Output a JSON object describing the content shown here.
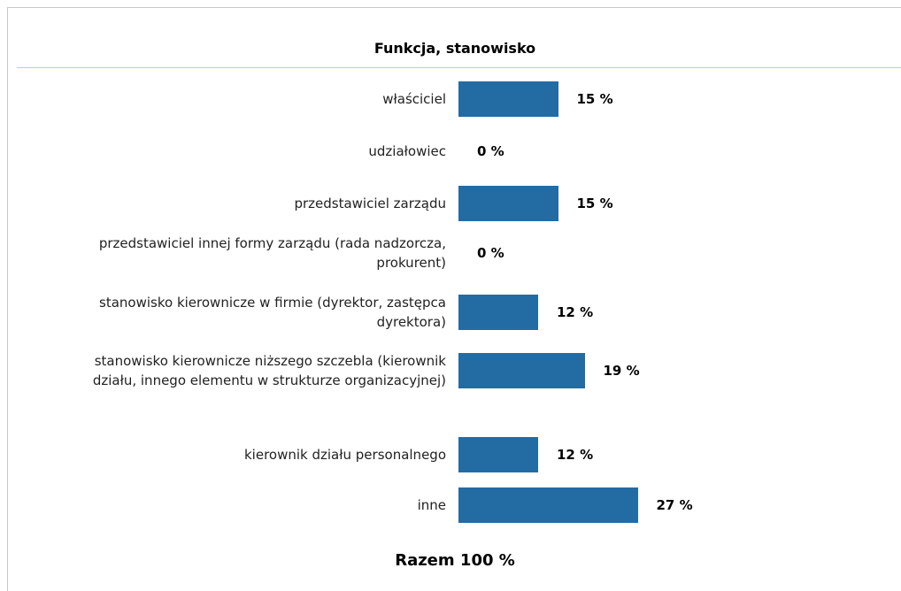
{
  "chart_data": {
    "type": "bar",
    "orientation": "horizontal",
    "title": "Funkcja, stanowisko",
    "categories": [
      "właściciel",
      "udziałowiec",
      "przedstawiciel zarządu",
      "przedstawiciel innej formy zarządu (rada nadzorcza, prokurent)",
      "stanowisko kierownicze w firmie (dyrektor, zastępca dyrektora)",
      "stanowisko kierownicze niższego szczebla (kierownik działu, innego elementu w strukturze organizacyjnej)",
      "kierownik działu personalnego",
      "inne"
    ],
    "values": [
      15,
      0,
      15,
      0,
      12,
      19,
      12,
      27
    ],
    "value_labels": [
      "15 %",
      "0 %",
      "15 %",
      "0 %",
      "12 %",
      "19 %",
      "12 %",
      "27 %"
    ],
    "color": "#236ba3",
    "footer": "Razem 100 %"
  }
}
